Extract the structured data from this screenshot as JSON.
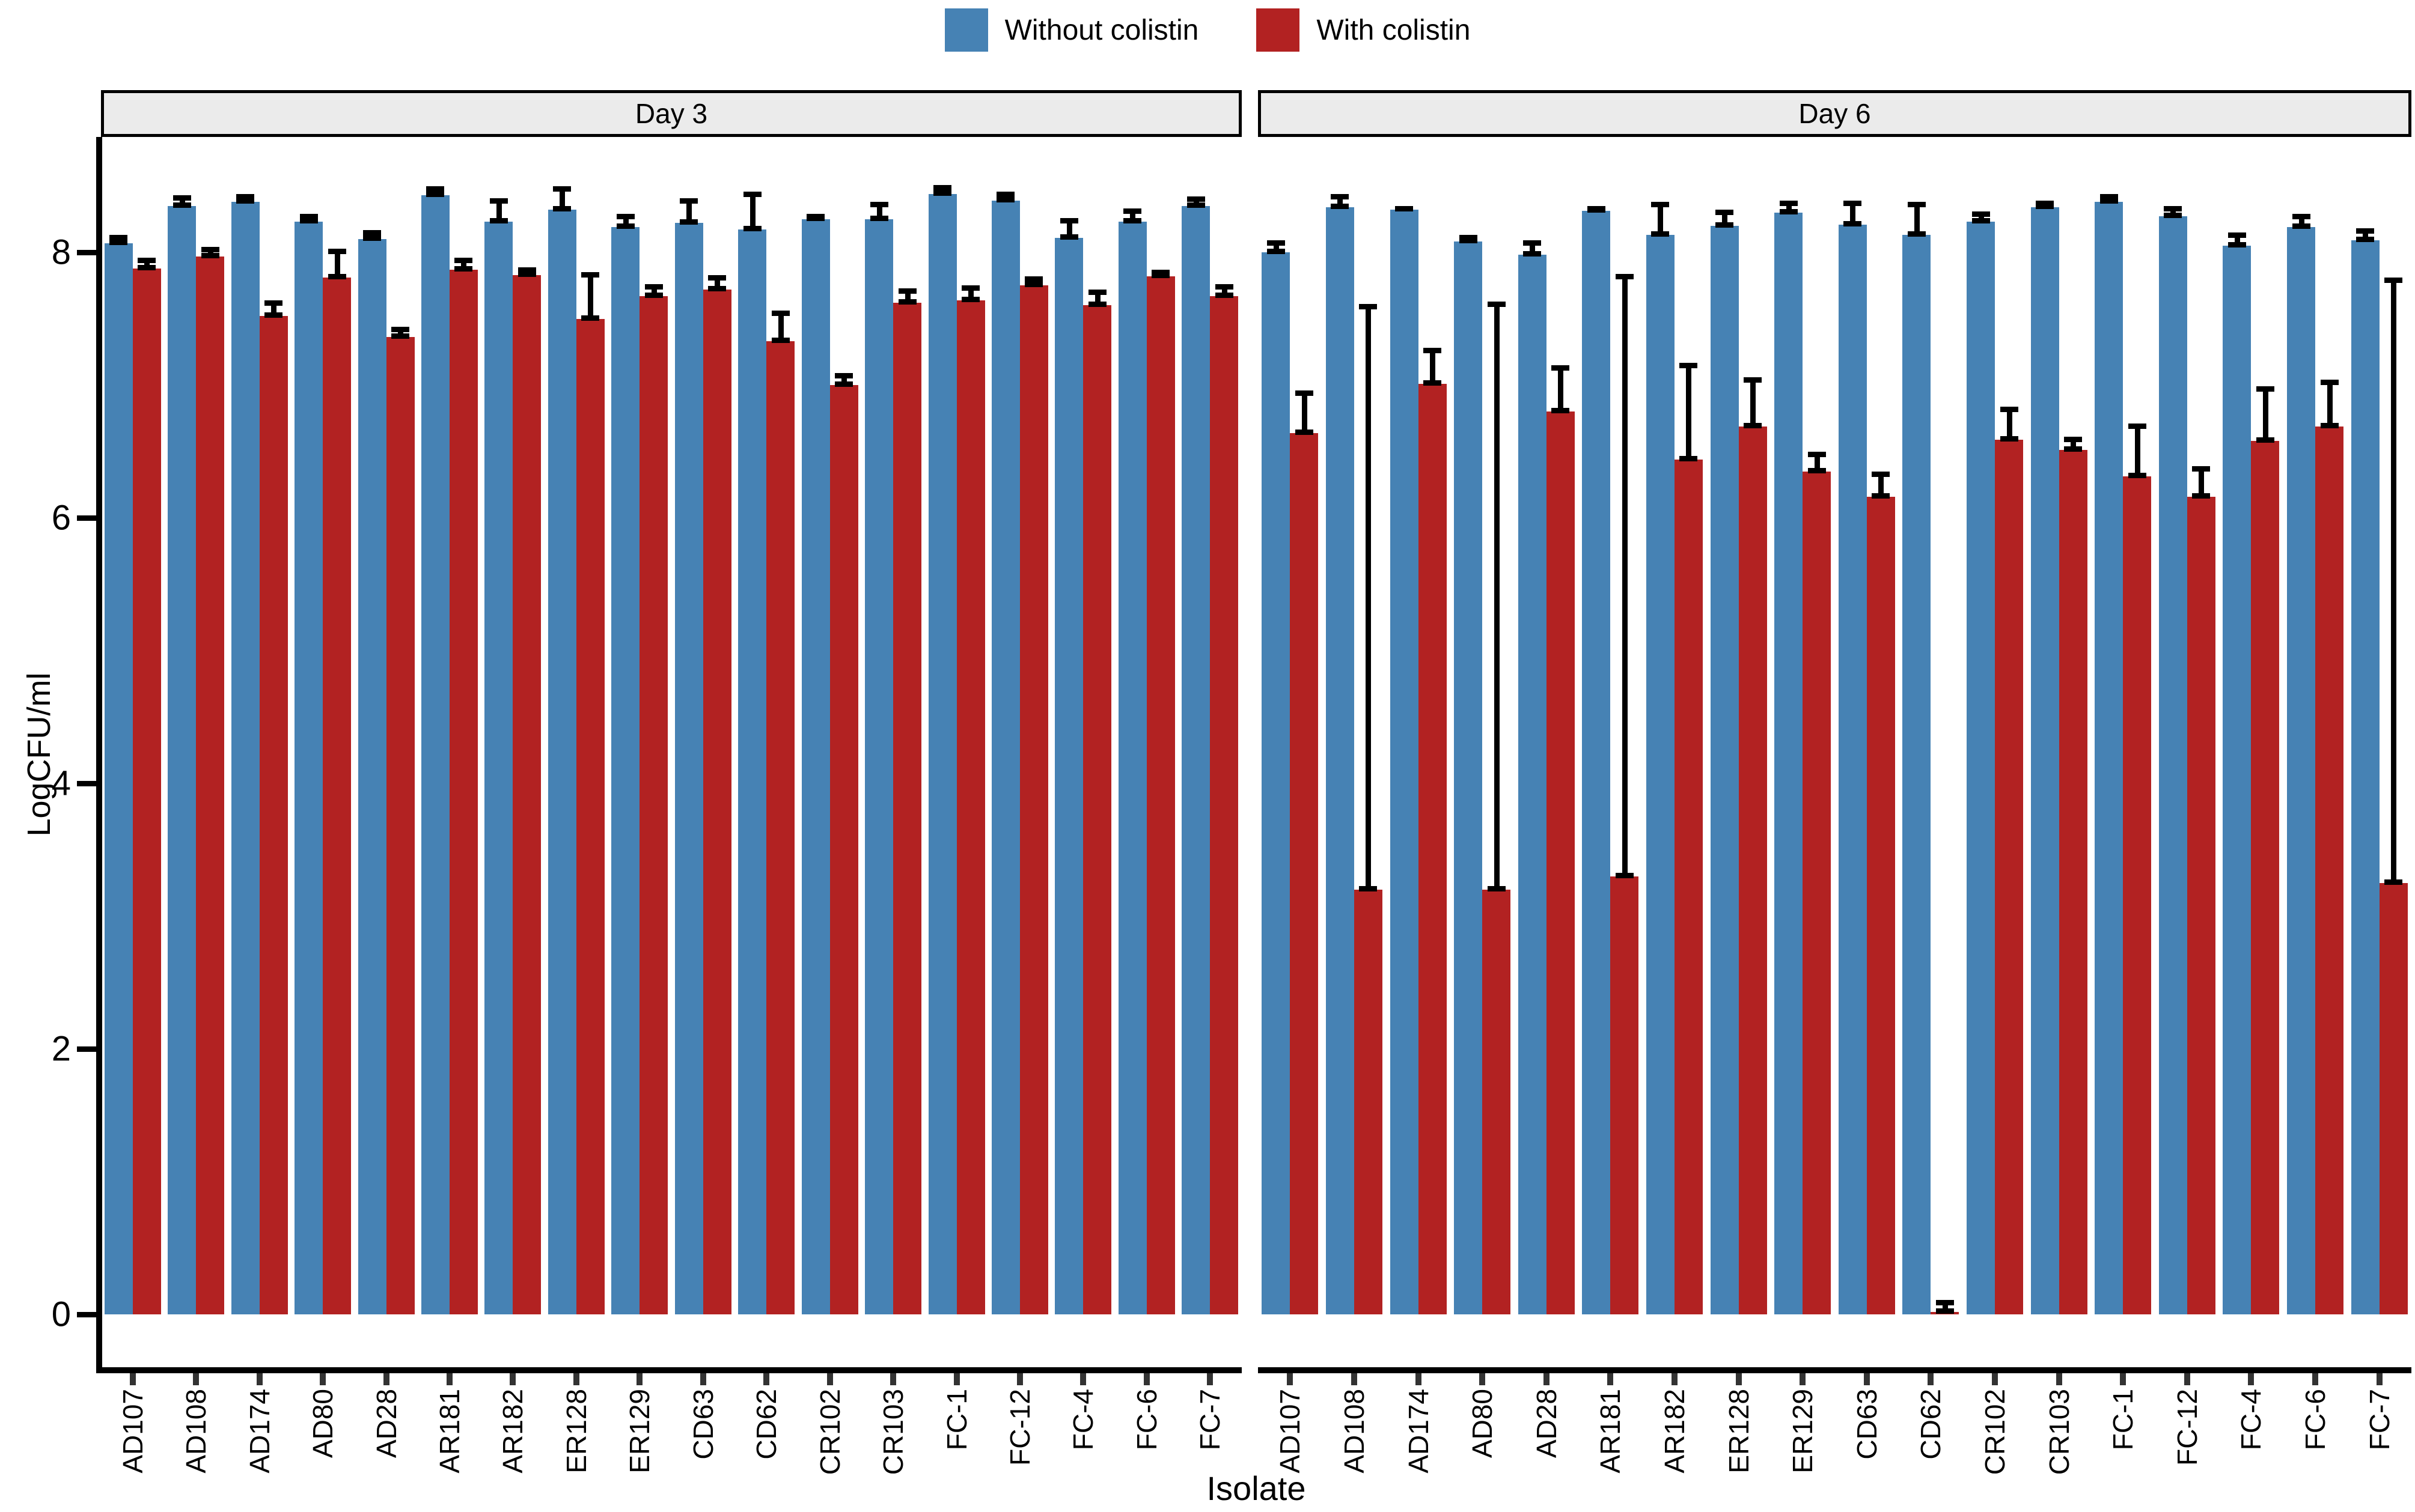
{
  "legend": {
    "items": [
      {
        "label": "Without colistin",
        "color": "#4682b4"
      },
      {
        "label": "With colistin",
        "color": "#b22222"
      }
    ]
  },
  "chart_data": {
    "type": "bar",
    "title": "",
    "xlabel": "Isolate",
    "ylabel": "LogCFU/ml",
    "ylim": [
      0,
      8.8
    ],
    "yticks": [
      0,
      2,
      4,
      6,
      8
    ],
    "grid": false,
    "legend_position": "top-center",
    "error_bars": "upper-whisker-with-caps",
    "colors": {
      "without_colistin": "#4682b4",
      "with_colistin": "#b22222"
    },
    "categories": [
      "AD107",
      "AD108",
      "AD174",
      "AD80",
      "AD28",
      "AR181",
      "AR182",
      "ER128",
      "ER129",
      "CD63",
      "CD62",
      "CR102",
      "CR103",
      "FC-1",
      "FC-12",
      "FC-4",
      "FC-6",
      "FC-7"
    ],
    "facets": [
      {
        "label": "Day 3",
        "series": [
          {
            "name": "Without colistin",
            "values": [
              8.07,
              8.35,
              8.38,
              8.23,
              8.1,
              8.43,
              8.23,
              8.32,
              8.19,
              8.22,
              8.17,
              8.25,
              8.25,
              8.44,
              8.39,
              8.11,
              8.23,
              8.35
            ],
            "errors_up": [
              0.05,
              0.07,
              0.05,
              0.05,
              0.06,
              0.06,
              0.17,
              0.17,
              0.09,
              0.18,
              0.28,
              0.03,
              0.12,
              0.06,
              0.06,
              0.14,
              0.09,
              0.06
            ]
          },
          {
            "name": "With colistin",
            "values": [
              7.88,
              7.97,
              7.52,
              7.81,
              7.36,
              7.87,
              7.83,
              7.5,
              7.67,
              7.72,
              7.33,
              7.0,
              7.62,
              7.64,
              7.75,
              7.6,
              7.82,
              7.67
            ],
            "errors_up": [
              0.07,
              0.06,
              0.11,
              0.21,
              0.07,
              0.08,
              0.05,
              0.34,
              0.08,
              0.1,
              0.22,
              0.08,
              0.1,
              0.1,
              0.06,
              0.11,
              0.04,
              0.08
            ]
          }
        ]
      },
      {
        "label": "Day 6",
        "series": [
          {
            "name": "Without colistin",
            "values": [
              8.0,
              8.34,
              8.32,
              8.08,
              7.98,
              8.31,
              8.13,
              8.2,
              8.3,
              8.21,
              8.13,
              8.23,
              8.34,
              8.38,
              8.27,
              8.05,
              8.19,
              8.09
            ],
            "errors_up": [
              0.08,
              0.09,
              0.02,
              0.04,
              0.1,
              0.03,
              0.24,
              0.11,
              0.08,
              0.17,
              0.24,
              0.07,
              0.04,
              0.05,
              0.07,
              0.09,
              0.09,
              0.08
            ]
          },
          {
            "name": "With colistin",
            "values": [
              6.64,
              3.2,
              7.01,
              3.2,
              6.8,
              3.3,
              6.44,
              6.69,
              6.35,
              6.16,
              0.02,
              6.59,
              6.51,
              6.31,
              6.16,
              6.58,
              6.69,
              3.25
            ],
            "errors_up": [
              0.31,
              4.4,
              0.26,
              4.42,
              0.34,
              4.53,
              0.72,
              0.36,
              0.14,
              0.18,
              0.08,
              0.24,
              0.09,
              0.39,
              0.22,
              0.4,
              0.34,
              4.55
            ]
          }
        ]
      }
    ]
  }
}
